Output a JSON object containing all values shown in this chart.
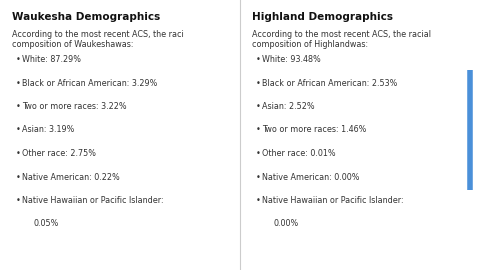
{
  "left_title": "Waukesha Demographics",
  "right_title": "Highland Demographics",
  "left_intro_line1": "According to the most recent ACS, the raci",
  "left_intro_line2": "composition of Waukeshawas:",
  "right_intro_line1": "According to the most recent ACS, the racial",
  "right_intro_line2": "composition of Highlandwas:",
  "left_bullets": [
    "White: 87.29%",
    "Black or African American: 3.29%",
    "Two or more races: 3.22%",
    "Asian: 3.19%",
    "Other race: 2.75%",
    "Native American: 0.22%",
    "Native Hawaiian or Pacific Islander:",
    "0.05%"
  ],
  "right_bullets": [
    "White: 93.48%",
    "Black or African American: 2.53%",
    "Asian: 2.52%",
    "Two or more races: 1.46%",
    "Other race: 0.01%",
    "Native American: 0.00%",
    "Native Hawaiian or Pacific Islander:",
    "0.00%"
  ],
  "bg_color": "#ffffff",
  "title_fontsize": 7.5,
  "body_fontsize": 5.8,
  "bullet_color": "#333333",
  "title_color": "#111111",
  "intro_color": "#333333",
  "blue_bar_color": "#4a90d9",
  "divider_color": "#cccccc"
}
